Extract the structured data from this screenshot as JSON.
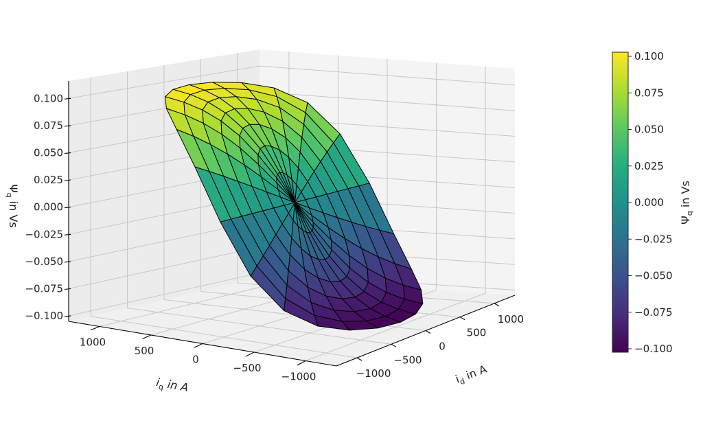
{
  "chart_data": {
    "type": "surface",
    "title": "",
    "xlabel": {
      "symbol": "i",
      "sub": "q",
      "unit_text": " in A"
    },
    "ylabel": {
      "symbol": "i",
      "sub": "d",
      "unit_text": " in A"
    },
    "zlabel": {
      "symbol": "Ψ",
      "sub": "q",
      "unit_text": " in Vs"
    },
    "iq_ticks": [
      1000,
      500,
      0,
      -500,
      -1000
    ],
    "iq_tick_labels": [
      "1000",
      "500",
      "0",
      "−500",
      "−1000"
    ],
    "id_ticks": [
      -1000,
      -500,
      0,
      500,
      1000
    ],
    "id_tick_labels": [
      "−1000",
      "−500",
      "0",
      "500",
      "1000"
    ],
    "z_ticks": [
      0.1,
      0.075,
      0.05,
      0.025,
      0.0,
      -0.025,
      -0.05,
      -0.075,
      -0.1
    ],
    "z_tick_labels": [
      "0.100",
      "0.075",
      "0.050",
      "0.025",
      "0.000",
      "−0.025",
      "−0.050",
      "−0.075",
      "−0.100"
    ],
    "iq_range": [
      -1300,
      1300
    ],
    "id_range": [
      -1300,
      1300
    ],
    "zlim": [
      -0.105,
      0.116
    ],
    "grid": true,
    "surface": {
      "grid_type": "polar",
      "radius_A": 1050,
      "rings": 7,
      "spokes": 24,
      "z_min": -0.1,
      "z_max": 0.1,
      "description_of_values": "Psi_q rises with iq, saturating near ±0.1 Vs"
    },
    "colormap": "viridis",
    "colormap_stops": [
      "#440154",
      "#472d7b",
      "#3b528b",
      "#2c728e",
      "#21918c",
      "#28ae80",
      "#5ec962",
      "#addc30",
      "#fde725"
    ],
    "colorbar": {
      "range": [
        -0.1,
        0.1
      ],
      "ticks": [
        0.1,
        0.075,
        0.05,
        0.025,
        0.0,
        -0.025,
        -0.05,
        -0.075,
        -0.1
      ],
      "tick_labels": [
        "0.100",
        "0.075",
        "0.050",
        "0.025",
        "0.000",
        "−0.025",
        "−0.050",
        "−0.075",
        "−0.100"
      ],
      "label": {
        "symbol": "Ψ",
        "sub": "q",
        "unit_text": " in Vs"
      },
      "placement": "right"
    }
  }
}
